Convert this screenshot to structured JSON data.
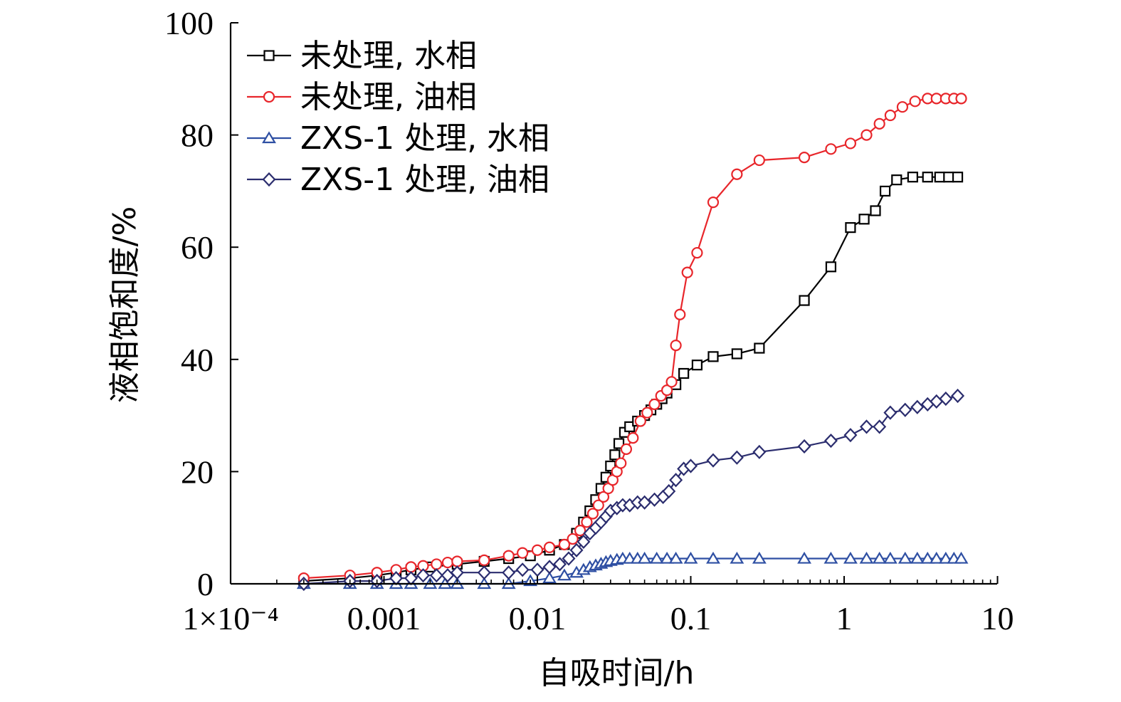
{
  "chart_data": {
    "type": "line",
    "title": "",
    "xlabel": "自吸时间/h",
    "ylabel": "液相饱和度/%",
    "xscale": "log",
    "xlim": [
      0.0001,
      10
    ],
    "ylim": [
      0,
      100
    ],
    "xticks": [
      0.0001,
      0.001,
      0.01,
      0.1,
      1,
      10
    ],
    "xtick_labels": [
      "1×10⁻⁴",
      "0.001",
      "0.01",
      "0.1",
      "1",
      "10"
    ],
    "yticks": [
      0,
      20,
      40,
      60,
      80,
      100
    ],
    "ytick_labels": [
      "0",
      "20",
      "40",
      "60",
      "80",
      "100"
    ],
    "legend_position": "top-left",
    "grid": false,
    "series": [
      {
        "name": "未处理, 水相",
        "color": "#000000",
        "marker": "square",
        "x": [
          0.0003,
          0.0006,
          0.0009,
          0.0012,
          0.0015,
          0.002,
          0.003,
          0.0045,
          0.0065,
          0.009,
          0.012,
          0.015,
          0.018,
          0.02,
          0.022,
          0.024,
          0.026,
          0.028,
          0.03,
          0.032,
          0.034,
          0.037,
          0.04,
          0.045,
          0.05,
          0.055,
          0.06,
          0.065,
          0.07,
          0.08,
          0.09,
          0.11,
          0.14,
          0.2,
          0.28,
          0.55,
          0.82,
          1.1,
          1.35,
          1.6,
          1.85,
          2.2,
          2.8,
          3.5,
          4.2,
          4.8,
          5.5
        ],
        "y": [
          0.5,
          1,
          1.5,
          2,
          2.5,
          3,
          3.5,
          4,
          4.5,
          5,
          6,
          7,
          9,
          11,
          13,
          15,
          17,
          19,
          21,
          23,
          25,
          27,
          28,
          29,
          30,
          31,
          32,
          33,
          34,
          35.5,
          37.5,
          39,
          40.5,
          41,
          42,
          50.5,
          56.5,
          63.5,
          65,
          66.5,
          70,
          72,
          72.5,
          72.5,
          72.5,
          72.5,
          72.5
        ]
      },
      {
        "name": "未处理, 油相",
        "color": "#e8262b",
        "marker": "circle",
        "x": [
          0.0003,
          0.0006,
          0.0009,
          0.0012,
          0.0015,
          0.0018,
          0.0022,
          0.0026,
          0.003,
          0.0045,
          0.0065,
          0.008,
          0.01,
          0.012,
          0.015,
          0.017,
          0.019,
          0.021,
          0.023,
          0.025,
          0.027,
          0.029,
          0.031,
          0.033,
          0.035,
          0.038,
          0.042,
          0.047,
          0.052,
          0.058,
          0.064,
          0.07,
          0.075,
          0.08,
          0.085,
          0.095,
          0.11,
          0.14,
          0.2,
          0.28,
          0.55,
          0.82,
          1.1,
          1.4,
          1.7,
          2.0,
          2.4,
          2.9,
          3.5,
          4.0,
          4.6,
          5.2,
          5.8
        ],
        "y": [
          1,
          1.5,
          2,
          2.5,
          3,
          3.2,
          3.5,
          3.8,
          4,
          4.2,
          5,
          5.5,
          6,
          6.5,
          7,
          8,
          9.5,
          11,
          12.5,
          14,
          15.5,
          17,
          18.5,
          20,
          21.5,
          24,
          26,
          29,
          30.5,
          32,
          33.5,
          34.5,
          36,
          42.5,
          48,
          55.5,
          59,
          68,
          73,
          75.5,
          76,
          77.5,
          78.5,
          80,
          82,
          83.5,
          85,
          86,
          86.5,
          86.5,
          86.5,
          86.5,
          86.5
        ]
      },
      {
        "name": "ZXS-1 处理, 水相",
        "color": "#2e4fa3",
        "marker": "triangle",
        "x": [
          0.0003,
          0.0006,
          0.0009,
          0.0012,
          0.0015,
          0.002,
          0.0025,
          0.003,
          0.0045,
          0.0065,
          0.009,
          0.012,
          0.015,
          0.018,
          0.02,
          0.022,
          0.024,
          0.026,
          0.028,
          0.03,
          0.033,
          0.036,
          0.04,
          0.045,
          0.05,
          0.06,
          0.07,
          0.08,
          0.1,
          0.14,
          0.2,
          0.28,
          0.55,
          0.82,
          1.1,
          1.4,
          1.7,
          2.0,
          2.5,
          3.0,
          3.5,
          4.0,
          4.6,
          5.2,
          5.8
        ],
        "y": [
          0,
          0,
          0,
          0,
          0,
          0,
          0,
          0,
          0,
          0,
          0.5,
          1,
          1.5,
          2,
          2.5,
          3,
          3.3,
          3.6,
          3.9,
          4.1,
          4.3,
          4.5,
          4.5,
          4.5,
          4.5,
          4.5,
          4.5,
          4.5,
          4.5,
          4.5,
          4.5,
          4.5,
          4.5,
          4.5,
          4.5,
          4.5,
          4.5,
          4.5,
          4.5,
          4.5,
          4.5,
          4.5,
          4.5,
          4.5,
          4.5
        ]
      },
      {
        "name": "ZXS-1 处理, 油相",
        "color": "#2b2d6e",
        "marker": "diamond",
        "x": [
          0.0003,
          0.0006,
          0.0009,
          0.0012,
          0.0015,
          0.0018,
          0.0022,
          0.0026,
          0.003,
          0.0045,
          0.0065,
          0.008,
          0.01,
          0.012,
          0.014,
          0.016,
          0.018,
          0.02,
          0.022,
          0.024,
          0.026,
          0.028,
          0.03,
          0.033,
          0.036,
          0.04,
          0.045,
          0.05,
          0.058,
          0.066,
          0.072,
          0.08,
          0.09,
          0.1,
          0.14,
          0.2,
          0.28,
          0.55,
          0.82,
          1.1,
          1.4,
          1.7,
          2.0,
          2.5,
          3.0,
          3.5,
          4.0,
          4.6,
          5.5
        ],
        "y": [
          0,
          0.5,
          0.5,
          1,
          1,
          1.5,
          1.5,
          1.5,
          2,
          2,
          2,
          2.5,
          2.5,
          3,
          3.5,
          4.5,
          6,
          7.5,
          9,
          10,
          11,
          12,
          13,
          13.5,
          14,
          14,
          14.5,
          14.5,
          15,
          15.5,
          16.5,
          18.5,
          20.5,
          21,
          22,
          22.5,
          23.5,
          24.5,
          25.5,
          26.5,
          28,
          28,
          30.5,
          31,
          31.5,
          32,
          32.5,
          33,
          33.5
        ]
      }
    ]
  }
}
